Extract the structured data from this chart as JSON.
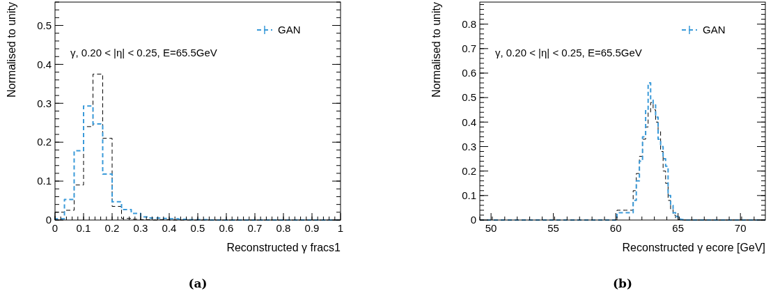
{
  "chart_data": [
    {
      "type": "histogram",
      "xlabel": "Reconstructed γ fracs1",
      "ylabel": "Normalised to unity",
      "annotations": [
        "γ, 0.20 < |η| < 0.25, E=65.5GeV",
        "(a)"
      ],
      "bins": [
        0,
        0.033,
        0.067,
        0.1,
        0.133,
        0.167,
        0.2,
        0.233,
        0.267,
        0.3,
        0.333,
        0.367,
        0.4,
        0.433,
        0.467,
        0.5,
        0.533,
        0.567,
        0.6,
        0.633,
        0.667,
        0.7,
        0.733,
        0.767,
        0.8,
        0.833,
        0.867,
        0.9,
        0.933,
        0.967,
        1
      ],
      "series": [
        {
          "color": "#000000",
          "values": [
            0.02,
            0.025,
            0.09,
            0.24,
            0.375,
            0.21,
            0.035,
            0.004,
            0.002,
            0.001,
            0,
            0.001,
            0,
            0,
            0,
            0,
            0,
            0,
            0,
            0,
            0,
            0,
            0,
            0,
            0,
            0,
            0,
            0,
            0,
            0
          ]
        },
        {
          "name": "GAN",
          "color": "#3a9ad9",
          "values": [
            0.003,
            0.053,
            0.178,
            0.293,
            0.247,
            0.118,
            0.047,
            0.027,
            0.017,
            0.008,
            0.005,
            0.004,
            0.003,
            0.002,
            0.001,
            0.001,
            0,
            0,
            0,
            0,
            0,
            0,
            0,
            0,
            0,
            0,
            0,
            0,
            0,
            0
          ]
        }
      ],
      "xlim": [
        0,
        1
      ],
      "ylim": [
        0,
        0.56
      ],
      "xticks": [
        0,
        0.1,
        0.2,
        0.3,
        0.4,
        0.5,
        0.6,
        0.7,
        0.8,
        0.9,
        1
      ],
      "yticks": [
        0,
        0.1,
        0.2,
        0.3,
        0.4,
        0.5
      ],
      "legend": "top right",
      "line_style": "dashed",
      "grid": false
    },
    {
      "type": "histogram",
      "xlabel": "Reconstructed γ ecore [GeV]",
      "ylabel": "Normalised to unity",
      "annotations": [
        "γ, 0.20 < |η| < 0.25, E=65.5GeV",
        "(b)"
      ],
      "bins": [
        49.1,
        50.5,
        52,
        53.5,
        55,
        56.5,
        58,
        59.2,
        60.1,
        60.8,
        61.4,
        61.65,
        61.9,
        62.15,
        62.4,
        62.6,
        62.8,
        63.0,
        63.2,
        63.4,
        63.6,
        63.8,
        64.0,
        64.2,
        64.4,
        64.6,
        64.8,
        65.0,
        65.2,
        65.4,
        66.5,
        68,
        70,
        72
      ],
      "series": [
        {
          "color": "#000000",
          "values": [
            0,
            0,
            0,
            0,
            0,
            0,
            0,
            0,
            0.04,
            0.04,
            0.12,
            0.19,
            0.26,
            0.33,
            0.38,
            0.44,
            0.48,
            0.45,
            0.4,
            0.365,
            0.28,
            0.2,
            0.15,
            0.08,
            0.045,
            0.02,
            0.005,
            0.002,
            0,
            0,
            0,
            0,
            0
          ]
        },
        {
          "name": "GAN",
          "color": "#3a9ad9",
          "values": [
            0,
            0,
            0,
            0,
            0,
            0,
            0,
            0,
            0.03,
            0.03,
            0.08,
            0.16,
            0.24,
            0.34,
            0.45,
            0.56,
            0.49,
            0.47,
            0.42,
            0.33,
            0.3,
            0.25,
            0.22,
            0.1,
            0.06,
            0.03,
            0.015,
            0.005,
            0.002,
            0,
            0,
            0,
            0
          ]
        }
      ],
      "xlim": [
        49.1,
        72
      ],
      "ylim": [
        0,
        0.89
      ],
      "xticks": [
        50,
        55,
        60,
        65,
        70
      ],
      "yticks": [
        0,
        0.1,
        0.2,
        0.3,
        0.4,
        0.5,
        0.6,
        0.7,
        0.8
      ],
      "legend": "top right",
      "line_style": "dashed",
      "grid": false
    }
  ]
}
